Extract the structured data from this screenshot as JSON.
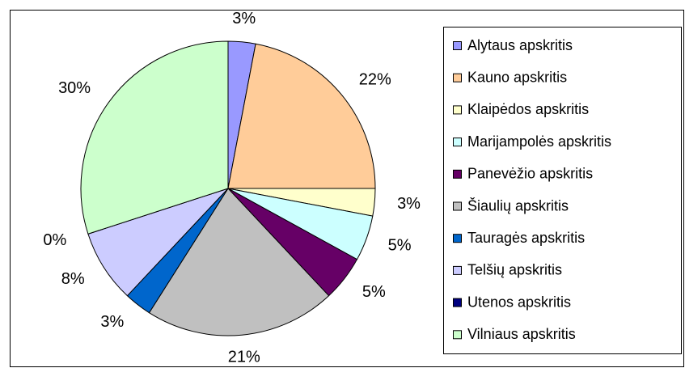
{
  "chart_data": {
    "type": "pie",
    "categories": [
      "Alytaus apskritis",
      "Kauno apskritis",
      "Klaipėdos apskritis",
      "Marijampolės apskritis",
      "Panevėžio apskritis",
      "Šiaulių apskritis",
      "Tauragės apskritis",
      "Telšių apskritis",
      "Utenos apskritis",
      "Vilniaus apskritis"
    ],
    "values": [
      3,
      22,
      3,
      5,
      5,
      21,
      3,
      8,
      0,
      30
    ],
    "value_labels": [
      "3%",
      "22%",
      "3%",
      "5%",
      "5%",
      "21%",
      "3%",
      "8%",
      "0%",
      "30%"
    ],
    "colors": [
      "#9999ff",
      "#ffcc99",
      "#ffffcc",
      "#ccffff",
      "#660066",
      "#c0c0c0",
      "#0066cc",
      "#ccccff",
      "#000080",
      "#ccffcc"
    ],
    "legend": "right"
  }
}
